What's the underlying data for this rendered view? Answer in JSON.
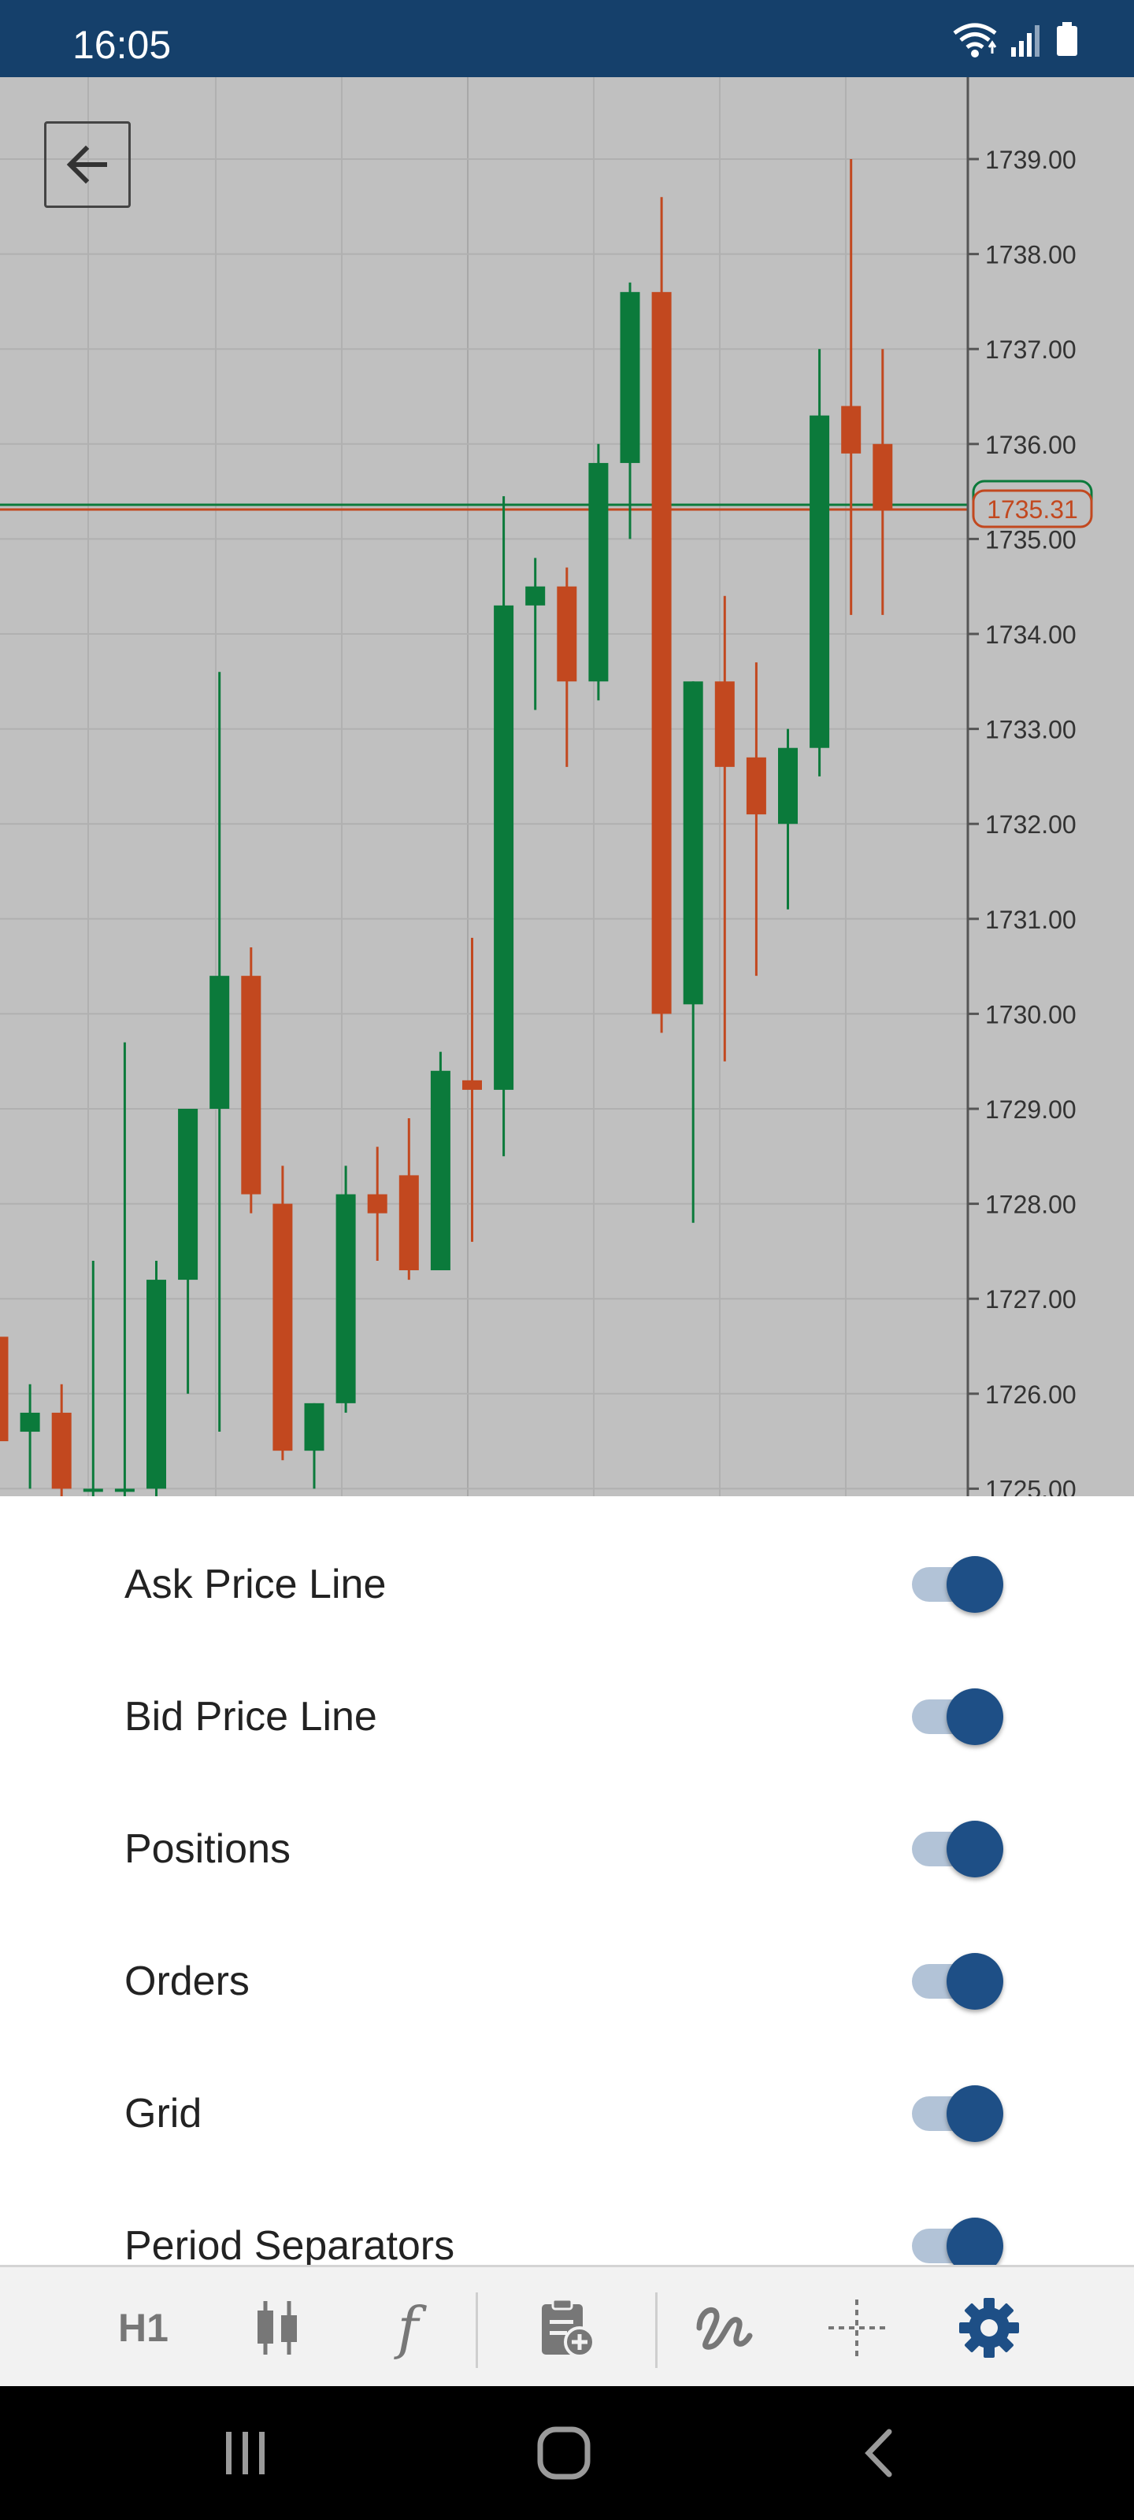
{
  "status_bar": {
    "time": "16:05",
    "icons": [
      "wifi-icon",
      "signal-icon",
      "battery-icon"
    ]
  },
  "chart": {
    "back_icon": "arrow-left-icon",
    "current_price_label": "1735.31",
    "colors": {
      "background": "#c0c0c0",
      "bull": "#0b7a3b",
      "bear": "#c2481f",
      "grid": "#b0b0b0",
      "axis_text": "#333333",
      "bid_line": "#c2481f",
      "ask_line": "#0b7a3b"
    }
  },
  "chart_data": {
    "type": "candlestick",
    "title": "",
    "xlabel": "",
    "ylabel": "",
    "ylim": [
      1725.0,
      1739.3
    ],
    "y_ticks": [
      "1739.00",
      "1738.00",
      "1737.00",
      "1736.00",
      "1735.00",
      "1734.00",
      "1733.00",
      "1732.00",
      "1731.00",
      "1730.00",
      "1729.00",
      "1728.00",
      "1727.00",
      "1726.00",
      "1725.00"
    ],
    "current_price": 1735.31,
    "ask_price": 1735.36,
    "grid": true,
    "candles": [
      {
        "o": 1726.6,
        "c": 1725.5,
        "h": 1726.6,
        "l": 1725.4
      },
      {
        "o": 1725.6,
        "c": 1725.8,
        "h": 1726.1,
        "l": 1725.0
      },
      {
        "o": 1725.8,
        "c": 1725.0,
        "h": 1726.1,
        "l": 1724.9
      },
      {
        "o": 1725.0,
        "c": 1725.0,
        "h": 1727.4,
        "l": 1724.9
      },
      {
        "o": 1725.0,
        "c": 1725.0,
        "h": 1729.7,
        "l": 1724.9
      },
      {
        "o": 1725.0,
        "c": 1727.2,
        "h": 1727.4,
        "l": 1724.9
      },
      {
        "o": 1727.2,
        "c": 1729.0,
        "h": 1729.0,
        "l": 1726.0
      },
      {
        "o": 1729.0,
        "c": 1730.4,
        "h": 1733.6,
        "l": 1725.6
      },
      {
        "o": 1730.4,
        "c": 1728.1,
        "h": 1730.7,
        "l": 1727.9
      },
      {
        "o": 1728.0,
        "c": 1725.4,
        "h": 1728.4,
        "l": 1725.3
      },
      {
        "o": 1725.4,
        "c": 1725.9,
        "h": 1725.9,
        "l": 1725.0
      },
      {
        "o": 1725.9,
        "c": 1728.1,
        "h": 1728.4,
        "l": 1725.8
      },
      {
        "o": 1728.1,
        "c": 1727.9,
        "h": 1728.6,
        "l": 1727.4
      },
      {
        "o": 1728.3,
        "c": 1727.3,
        "h": 1728.9,
        "l": 1727.2
      },
      {
        "o": 1727.3,
        "c": 1729.4,
        "h": 1729.6,
        "l": 1727.3
      },
      {
        "o": 1729.3,
        "c": 1729.2,
        "h": 1730.8,
        "l": 1727.6
      },
      {
        "o": 1729.2,
        "c": 1734.3,
        "h": 1735.45,
        "l": 1728.5
      },
      {
        "o": 1734.3,
        "c": 1734.5,
        "h": 1734.8,
        "l": 1733.2
      },
      {
        "o": 1734.5,
        "c": 1733.5,
        "h": 1734.7,
        "l": 1732.6
      },
      {
        "o": 1733.5,
        "c": 1735.8,
        "h": 1736.0,
        "l": 1733.3
      },
      {
        "o": 1735.8,
        "c": 1737.6,
        "h": 1737.7,
        "l": 1735.0
      },
      {
        "o": 1737.6,
        "c": 1730.0,
        "h": 1738.6,
        "l": 1729.8
      },
      {
        "o": 1730.1,
        "c": 1733.5,
        "h": 1733.5,
        "l": 1727.8
      },
      {
        "o": 1733.5,
        "c": 1732.6,
        "h": 1734.4,
        "l": 1729.5
      },
      {
        "o": 1732.7,
        "c": 1732.1,
        "h": 1733.7,
        "l": 1730.4
      },
      {
        "o": 1732.0,
        "c": 1732.8,
        "h": 1733.0,
        "l": 1731.1
      },
      {
        "o": 1732.8,
        "c": 1736.3,
        "h": 1737.0,
        "l": 1732.5
      },
      {
        "o": 1736.4,
        "c": 1735.9,
        "h": 1739.0,
        "l": 1734.2
      },
      {
        "o": 1736.0,
        "c": 1735.31,
        "h": 1737.0,
        "l": 1734.2
      }
    ]
  },
  "settings": {
    "items": [
      {
        "label": "Ask Price Line",
        "enabled": true
      },
      {
        "label": "Bid Price Line",
        "enabled": true
      },
      {
        "label": "Positions",
        "enabled": true
      },
      {
        "label": "Orders",
        "enabled": true
      },
      {
        "label": "Grid",
        "enabled": true
      },
      {
        "label": "Period Separators",
        "enabled": true
      }
    ]
  },
  "toolbar": {
    "timeframe_label": "H1",
    "chart_type_icon": "candlestick-icon",
    "indicators_label": "f",
    "new_order_icon": "clipboard-plus-icon",
    "drawing_icon": "drawing-tool-icon",
    "crosshair_icon": "crosshair-icon",
    "settings_icon": "gear-icon",
    "active_color": "#1e4f86",
    "inactive_color": "#777777"
  },
  "nav_bar": {
    "icons": [
      "recents-icon",
      "home-icon",
      "back-icon"
    ]
  }
}
